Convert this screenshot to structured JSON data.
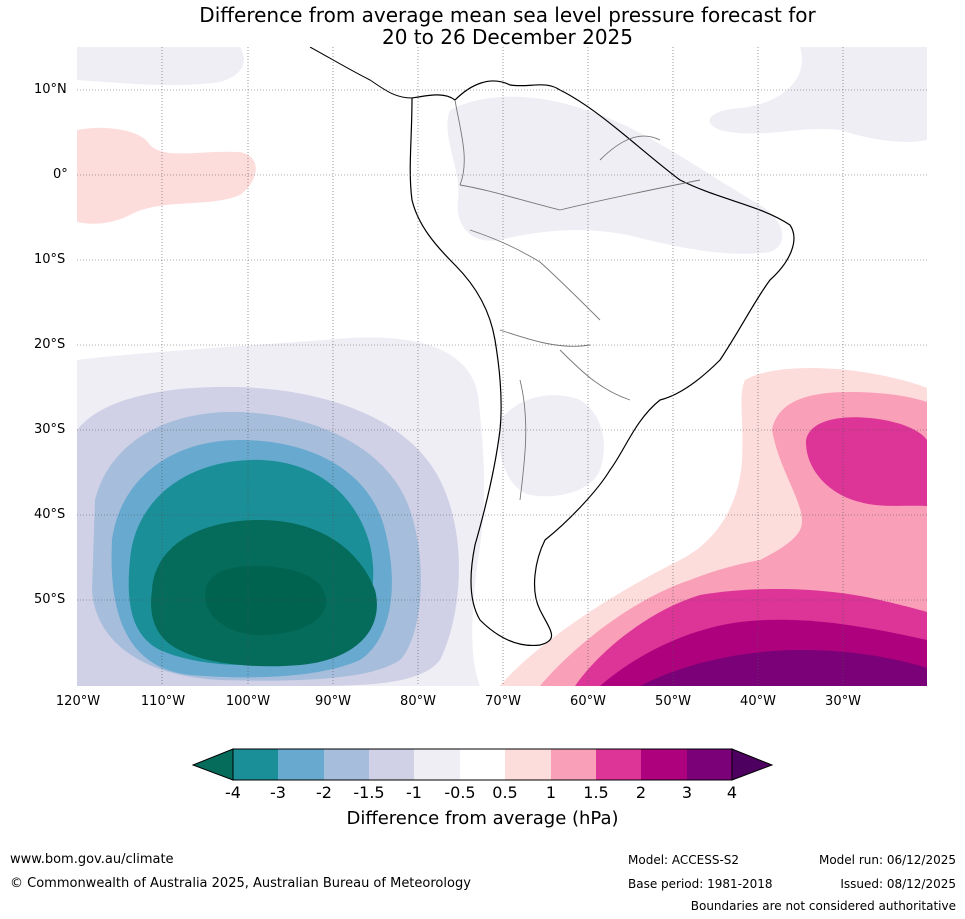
{
  "title": {
    "line1": "Difference from average mean sea level pressure forecast for",
    "line2": "20 to 26 December 2025"
  },
  "axes": {
    "lat_labels": [
      "10°N",
      "0°",
      "10°S",
      "20°S",
      "30°S",
      "40°S",
      "50°S"
    ],
    "lon_labels": [
      "120°W",
      "110°W",
      "100°W",
      "90°W",
      "80°W",
      "70°W",
      "60°W",
      "50°W",
      "40°W",
      "30°W"
    ]
  },
  "colorbar": {
    "title": "Difference from average (hPa)",
    "ticks": [
      "-4",
      "-3",
      "-2",
      "-1.5",
      "-1",
      "-0.5",
      "0.5",
      "1",
      "1.5",
      "2",
      "3",
      "4"
    ],
    "colors": {
      "lt_m4": "#056b5a",
      "m4_m3": "#1a8f98",
      "m3_m2": "#67a9cf",
      "m2_m15": "#a6bddb",
      "m15_m1": "#d0d1e6",
      "m1_m05": "#f0eef5",
      "m05_05": "#ffffff",
      "p05_1": "#fddcdc",
      "p1_15": "#f99fb7",
      "p15_2": "#dd3497",
      "p2_3": "#ae017e",
      "p3_4": "#7a0177",
      "gt_4": "#4d0060"
    }
  },
  "footer": {
    "website": "www.bom.gov.au/climate",
    "copyright": "© Commonwealth of Australia 2025, Australian Bureau of Meteorology",
    "model": "Model: ACCESS-S2",
    "base_period": "Base period: 1981-2018",
    "model_run": "Model run: 06/12/2025",
    "issued": "Issued: 08/12/2025",
    "disclaimer": "Boundaries are not considered authoritative"
  }
}
